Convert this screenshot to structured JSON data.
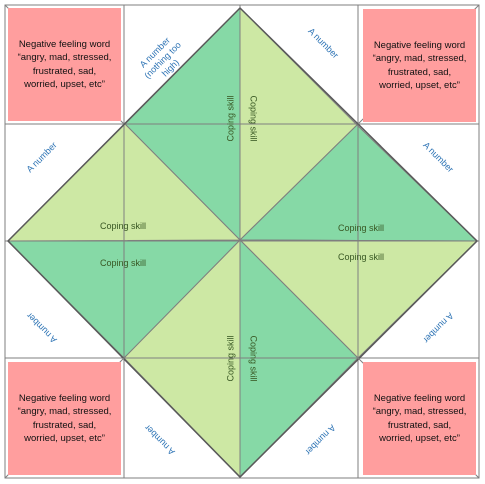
{
  "colors": {
    "corner_fill": "#ff9e9e",
    "dark_green": "#86d9a6",
    "light_green": "#cde8a4",
    "number_text": "#2e74b5",
    "skill_text": "#385723",
    "line": "#7f7f7f"
  },
  "corners": [
    {
      "id": "top-left",
      "text": "Negative feeling word\n“angry, mad, stressed,\nfrustrated, sad,\nworried, upset, etc”"
    },
    {
      "id": "top-right",
      "text": "Negative feeling word\n“angry, mad, stressed,\nfrustrated, sad,\nworried, upset, etc”"
    },
    {
      "id": "bottom-left",
      "text": "Negative feeling word\n“angry, mad, stressed,\nfrustrated, sad,\nworried, upset, etc”"
    },
    {
      "id": "bottom-right",
      "text": "Negative feeling word\n“angry, mad, stressed,\nfrustrated, sad,\nworried, upset, etc”"
    }
  ],
  "number_labels": [
    {
      "text": "A number\n(nothing too high)"
    },
    {
      "text": "A number"
    },
    {
      "text": "A number"
    },
    {
      "text": "A number"
    },
    {
      "text": "A number"
    },
    {
      "text": "A number"
    },
    {
      "text": "A number"
    },
    {
      "text": "A number"
    }
  ],
  "skill_labels": [
    {
      "text": "Coping skill"
    },
    {
      "text": "Coping skill"
    },
    {
      "text": "Coping skill"
    },
    {
      "text": "Coping skill"
    },
    {
      "text": "Coping skill"
    },
    {
      "text": "Coping skill"
    },
    {
      "text": "Coping skill"
    },
    {
      "text": "Coping skill"
    }
  ]
}
